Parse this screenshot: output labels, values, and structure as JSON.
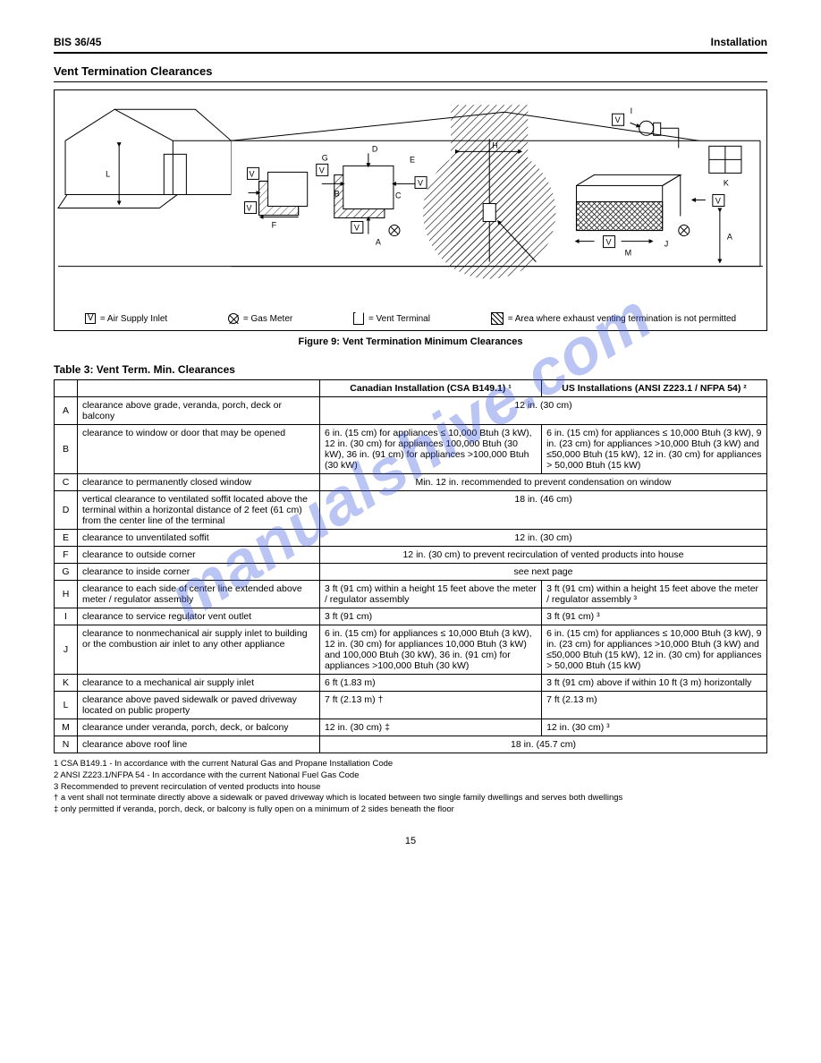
{
  "header": {
    "model": "BIS 36/45",
    "section_label": "Installation"
  },
  "section_title": "Vent Termination Clearances",
  "figure": {
    "caption": "Figure 9: Vent Termination Minimum Clearances",
    "legend": {
      "air_inlet": "= Air Supply Inlet",
      "gas_meter": "= Gas Meter",
      "restricted": "= Area where exhaust venting termination is not permitted",
      "vent_terminal": "= Vent Terminal"
    },
    "labels": [
      "A",
      "B",
      "C",
      "D",
      "E",
      "F",
      "G",
      "H",
      "J",
      "I",
      "K",
      "L",
      "M",
      "V"
    ],
    "colors": {
      "line": "#000000",
      "hatch": "#000000",
      "bg": "#ffffff"
    },
    "watermark": "manualshive.com"
  },
  "table": {
    "title": "Table 3: Vent Term. Min. Clearances",
    "header": {
      "col1": "",
      "col_ca": "Canadian Installation (CSA B149.1) ¹",
      "col_us": "US Installations (ANSI Z223.1 / NFPA 54) ²"
    },
    "rows": [
      {
        "key": "A",
        "desc": "clearance above grade, veranda, porch, deck or balcony",
        "val": "12 in. (30 cm)",
        "span": true
      },
      {
        "key": "B",
        "desc": "clearance to window or door that may be opened",
        "ca": "6 in. (15 cm) for appliances ≤ 10,000 Btuh (3 kW), 12 in. (30 cm) for appliances 100,000 Btuh (30 kW), 36 in. (91 cm) for appliances >100,000 Btuh (30 kW)",
        "us": "6 in. (15 cm) for appliances ≤ 10,000 Btuh (3 kW), 9 in. (23 cm) for appliances >10,000 Btuh (3 kW) and ≤50,000 Btuh (15 kW), 12 in. (30 cm) for appliances > 50,000 Btuh (15 kW)"
      },
      {
        "key": "C",
        "desc": "clearance to permanently closed window",
        "val": "Min. 12 in. recommended to prevent condensation on window",
        "span": true
      },
      {
        "key": "D",
        "desc": "vertical clearance to ventilated soffit located above the terminal within a horizontal distance of 2 feet (61 cm) from the center line of the terminal",
        "val": "18 in. (46 cm)",
        "span": true
      },
      {
        "key": "E",
        "desc": "clearance to unventilated soffit",
        "val": "12 in. (30 cm)",
        "span": true
      },
      {
        "key": "F",
        "desc": "clearance to outside corner",
        "val": "12 in. (30 cm) to prevent recirculation of vented products into house",
        "span": true
      },
      {
        "key": "G",
        "desc": "clearance to inside corner",
        "val": "see next page",
        "span": true
      },
      {
        "key": "H",
        "desc": "clearance to each side of center line extended above meter / regulator assembly",
        "ca": "3 ft (91 cm) within a height 15 feet above the meter / regulator assembly",
        "us": "3 ft (91 cm) within a height 15 feet above the meter / regulator assembly ³"
      },
      {
        "key": "I",
        "desc": "clearance to service regulator vent outlet",
        "ca": "3 ft (91 cm)",
        "us": "3 ft (91 cm) ³"
      },
      {
        "key": "J",
        "desc": "clearance to nonmechanical air supply inlet to building or the combustion air inlet to any other appliance",
        "ca": "6 in. (15 cm) for appliances ≤ 10,000 Btuh (3 kW), 12 in. (30 cm) for appliances 10,000 Btuh (3 kW) and 100,000 Btuh (30 kW), 36 in. (91 cm) for appliances >100,000 Btuh (30 kW)",
        "us": "6 in. (15 cm) for appliances ≤ 10,000 Btuh (3 kW), 9 in. (23 cm) for appliances >10,000 Btuh (3 kW) and ≤50,000 Btuh (15 kW), 12 in. (30 cm) for appliances > 50,000 Btuh (15 kW)"
      },
      {
        "key": "K",
        "desc": "clearance to a mechanical air supply inlet",
        "ca": "6 ft (1.83 m)",
        "us": "3 ft (91 cm) above if within 10 ft (3 m) horizontally"
      },
      {
        "key": "L",
        "desc": "clearance above paved sidewalk or paved driveway located on public property",
        "ca": "7 ft (2.13 m) †",
        "us": "7 ft (2.13 m)"
      },
      {
        "key": "M",
        "desc": "clearance under veranda, porch, deck, or balcony",
        "ca": "12 in. (30 cm) ‡",
        "us": "12 in. (30 cm) ³"
      },
      {
        "key": "N",
        "desc": "clearance above roof line",
        "val": "18 in. (45.7 cm)",
        "span": true
      }
    ],
    "footnotes": [
      "1 CSA B149.1 - In accordance with the current Natural Gas and Propane Installation Code",
      "2 ANSI Z223.1/NFPA 54 - In accordance with the current National Fuel Gas Code",
      "3 Recommended to prevent recirculation of vented products into house",
      "† a vent shall not terminate directly above a sidewalk or paved driveway which is located between two single family dwellings and serves both dwellings",
      "‡ only permitted if veranda, porch, deck, or balcony is fully open on a minimum of 2 sides beneath the floor"
    ]
  },
  "page_number": "15"
}
